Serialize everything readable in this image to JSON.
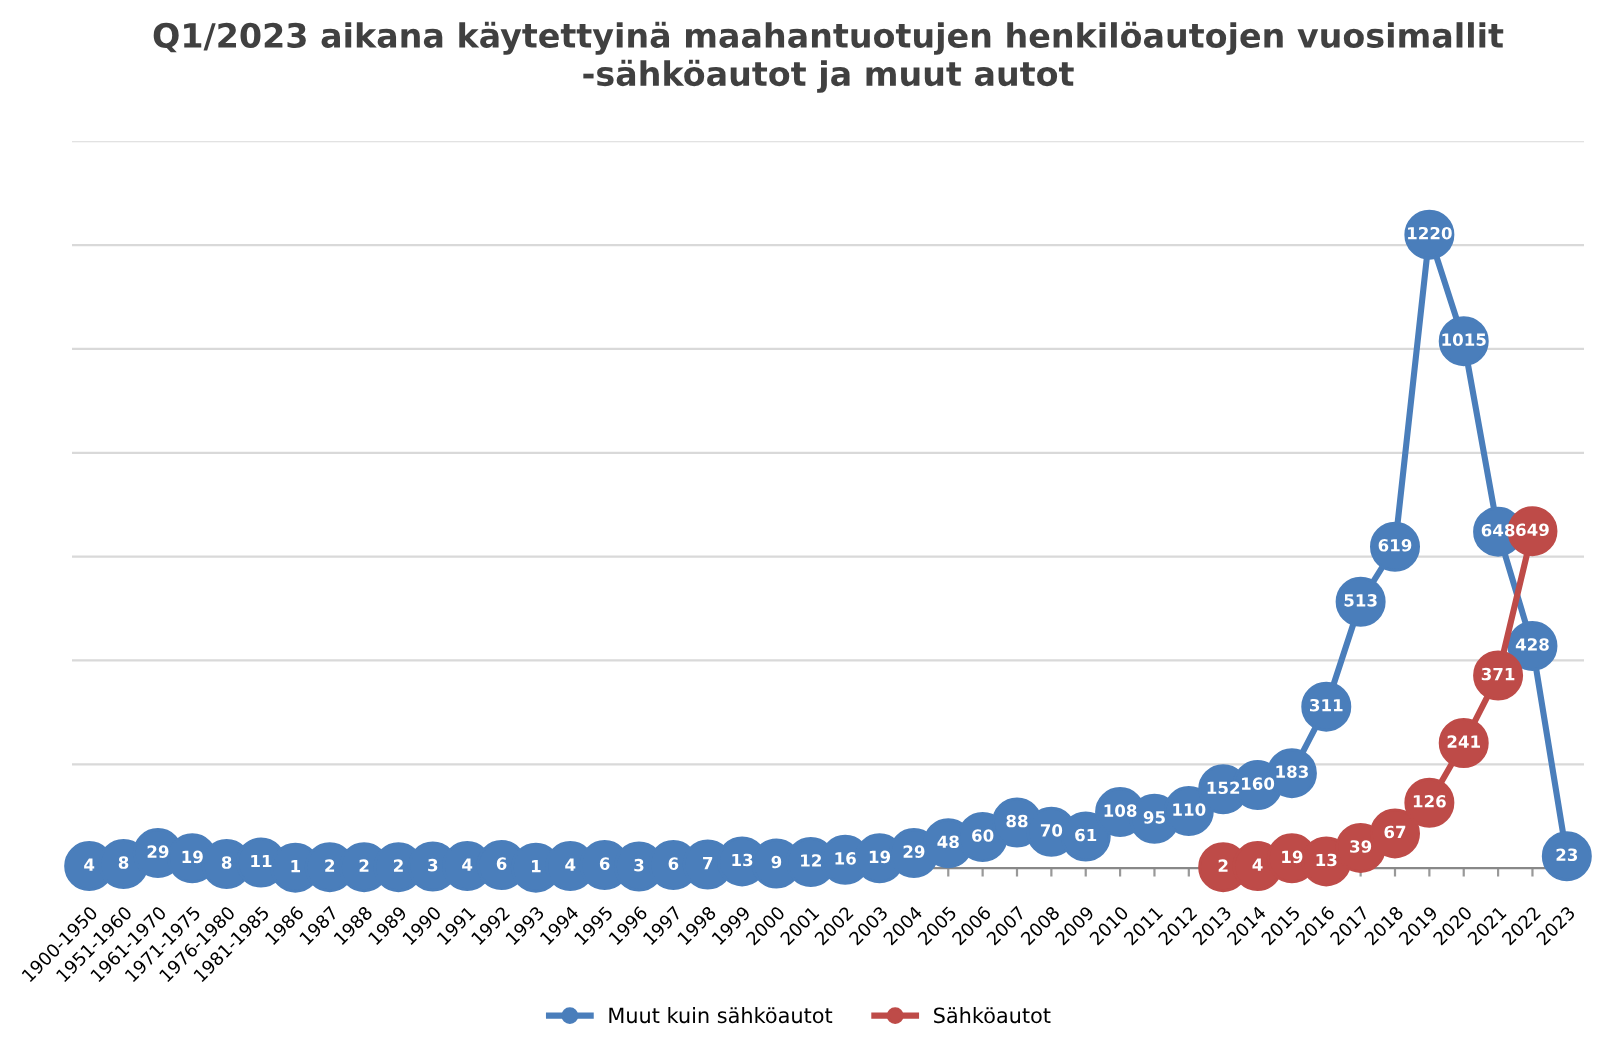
{
  "chart_data": {
    "type": "line",
    "title": "Q1/2023 aikana käytettyinä maahantuotujen henkilöautojen vuosimallit\n-sähköautot ja muut autot",
    "categories": [
      "1900-1950",
      "1951-1960",
      "1961-1970",
      "1971-1975",
      "1976-1980",
      "1981-1985",
      "1986",
      "1987",
      "1988",
      "1989",
      "1990",
      "1991",
      "1992",
      "1993",
      "1994",
      "1995",
      "1996",
      "1997",
      "1998",
      "1999",
      "2000",
      "2001",
      "2002",
      "2003",
      "2004",
      "2005",
      "2006",
      "2007",
      "2008",
      "2009",
      "2010",
      "2011",
      "2012",
      "2013",
      "2014",
      "2015",
      "2016",
      "2017",
      "2018",
      "2019",
      "2020",
      "2021",
      "2022",
      "2023"
    ],
    "series": [
      {
        "name": "Muut kuin sähköautot",
        "color": "#4a7ebb",
        "values": [
          4,
          8,
          29,
          19,
          8,
          11,
          1,
          2,
          2,
          2,
          3,
          4,
          6,
          1,
          4,
          6,
          3,
          6,
          7,
          13,
          9,
          12,
          16,
          19,
          29,
          48,
          60,
          88,
          70,
          61,
          108,
          95,
          110,
          152,
          160,
          183,
          311,
          513,
          619,
          1220,
          1015,
          648,
          428,
          23
        ]
      },
      {
        "name": "Sähköautot",
        "color": "#be4b48",
        "values": [
          null,
          null,
          null,
          null,
          null,
          null,
          null,
          null,
          null,
          null,
          null,
          null,
          null,
          null,
          null,
          null,
          null,
          null,
          null,
          null,
          null,
          null,
          null,
          null,
          null,
          null,
          null,
          null,
          null,
          null,
          null,
          null,
          null,
          2,
          4,
          19,
          13,
          39,
          67,
          126,
          241,
          371,
          649,
          null
        ]
      }
    ],
    "ylim": [
      0,
      1400
    ],
    "yticks": [
      {
        "value": 0,
        "label": null
      },
      {
        "value": 200,
        "label": null
      },
      {
        "value": 400,
        "label": null
      },
      {
        "value": 600,
        "label": null
      },
      {
        "value": 800,
        "label": null
      },
      {
        "value": 1000,
        "label": null
      },
      {
        "value": 1200,
        "label": null
      },
      {
        "value": 1400,
        "label": null
      }
    ],
    "tick_labels": "x",
    "grid": "y",
    "legend": "bottom",
    "marker": "circle",
    "line_style": "solid",
    "data_labels": true
  }
}
